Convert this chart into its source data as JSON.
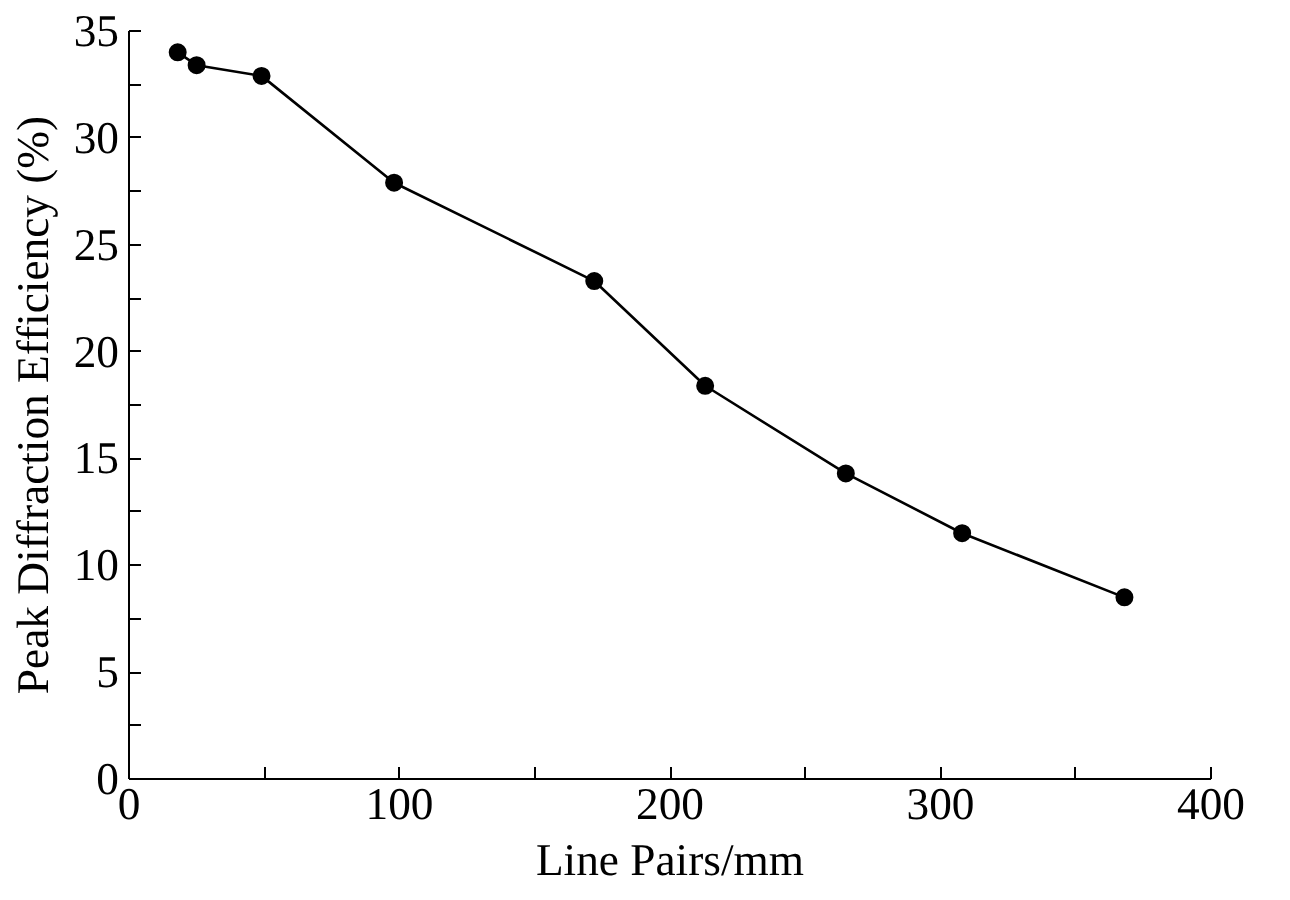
{
  "chart_data": {
    "type": "line",
    "xlabel": "Line Pairs/mm",
    "ylabel": "Peak Diffraction Efficiency (%)",
    "x": [
      18,
      25,
      49,
      98,
      172,
      213,
      265,
      308,
      368
    ],
    "series": [
      {
        "color": "#000000",
        "values": [
          34.0,
          33.4,
          32.9,
          27.9,
          23.3,
          18.4,
          14.3,
          11.5,
          8.5
        ]
      }
    ],
    "xlim": [
      0,
      400
    ],
    "ylim": [
      0,
      35
    ],
    "xticks": [
      0,
      {
        "value": 50,
        "label": null
      },
      100,
      {
        "value": 150,
        "label": null
      },
      200,
      {
        "value": 250,
        "label": null
      },
      300,
      {
        "value": 350,
        "label": null
      },
      400
    ],
    "yticks": [
      0,
      {
        "value": 2.5,
        "label": null
      },
      5,
      {
        "value": 7.5,
        "label": null
      },
      10,
      {
        "value": 12.5,
        "label": null
      },
      15,
      {
        "value": 17.5,
        "label": null
      },
      20,
      {
        "value": 22.5,
        "label": null
      },
      25,
      {
        "value": 27.5,
        "label": null
      },
      30,
      {
        "value": 32.5,
        "label": null
      },
      35
    ],
    "marker": "circle",
    "line_style": "solid"
  }
}
